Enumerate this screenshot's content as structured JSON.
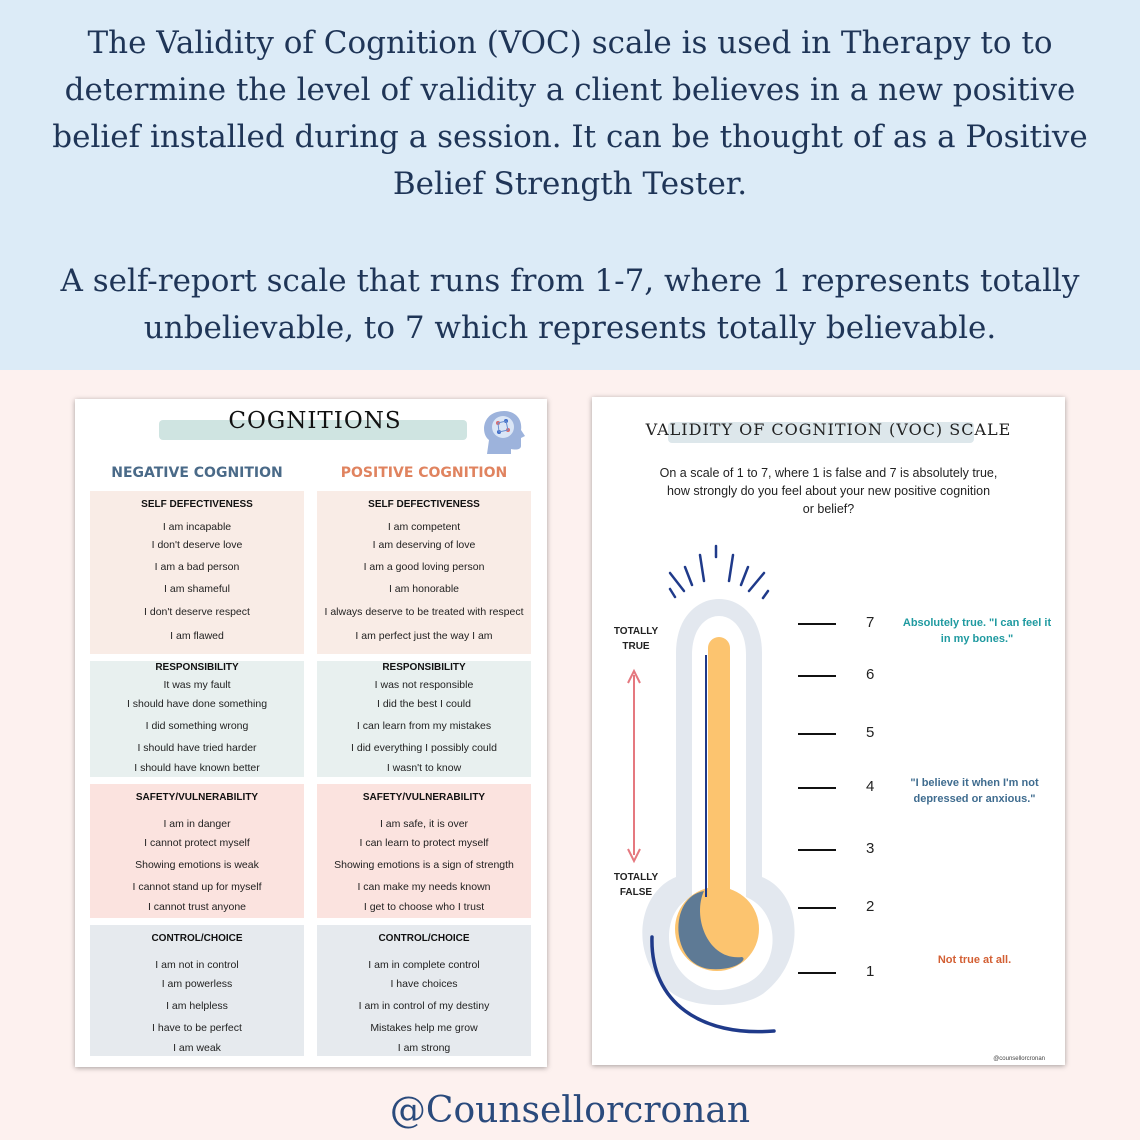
{
  "intro": {
    "paragraph1": "The Validity of Cognition (VOC) scale is used in Therapy to  to determine the level of validity a client believes in a new positive belief installed during a session. It can be thought of as a Positive Belief Strength Tester.",
    "paragraph2": "A self-report scale that runs from 1-7, where 1 represents totally unbelievable, to 7 which represents totally believable."
  },
  "cognitions": {
    "title": "COGNITIONS",
    "negative_heading": "NEGATIVE COGNITION",
    "positive_heading": "POSITIVE COGNITION",
    "sections": [
      {
        "header": "SELF DEFECTIVENESS",
        "negative": [
          "I am incapable",
          "I don't deserve love",
          "I am a bad person",
          "I am shameful",
          "I don't deserve respect",
          "I am flawed"
        ],
        "positive": [
          "I am competent",
          "I am deserving of love",
          "I am a good loving person",
          "I am honorable",
          "I always deserve to be treated with respect",
          "I am perfect just the way I am"
        ]
      },
      {
        "header": "RESPONSIBILITY",
        "negative": [
          "It was my fault",
          "I should have done something",
          "I did something wrong",
          "I should have tried harder",
          "I should have known better"
        ],
        "positive": [
          "I was not responsible",
          "I did the best I could",
          "I can learn from my mistakes",
          "I did everything I  possibly could",
          "I wasn't to know"
        ]
      },
      {
        "header": "SAFETY/VULNERABILITY",
        "negative": [
          "I am in danger",
          "I cannot protect myself",
          "Showing emotions is weak",
          "I cannot stand up for myself",
          "I cannot trust anyone"
        ],
        "positive": [
          "I am safe, it is over",
          "I can learn to protect myself",
          "Showing emotions is a sign of strength",
          "I can make my needs known",
          "I get to choose who I trust"
        ]
      },
      {
        "header": "CONTROL/CHOICE",
        "negative": [
          "I am not in control",
          "I am powerless",
          "I am helpless",
          "I have to be perfect",
          "I am weak"
        ],
        "positive": [
          "I am in complete control",
          "I have choices",
          "I am in control of my destiny",
          "Mistakes help me grow",
          "I am strong"
        ]
      }
    ]
  },
  "voc": {
    "title": "VALIDITY OF COGNITION  (VOC) SCALE",
    "question": [
      "On a scale of 1 to 7, where 1 is false and 7 is absolutely true,",
      "how strongly do you feel about your new positive cognition",
      "or belief?"
    ],
    "totally_true": [
      "TOTALLY",
      "TRUE"
    ],
    "totally_false": [
      "TOTALLY",
      "FALSE"
    ],
    "scale": [
      "7",
      "6",
      "5",
      "4",
      "3",
      "2",
      "1"
    ],
    "anno_7": [
      "Absolutely true. \"I can feel it",
      "in my bones.\""
    ],
    "anno_4": [
      "\"I believe it when I'm not",
      "depressed or anxious.\""
    ],
    "anno_1": "Not true at all.",
    "credit": "@counsellorcronan"
  },
  "footer": "@Counsellorcronan",
  "colors": {
    "navy": "#1f3557",
    "negative": "#4a6a88",
    "positive": "#e0835f",
    "peach": "#f9ece6",
    "mint": "#e8f0ef",
    "pink": "#fbe3df",
    "grey": "#e6eaee",
    "mercury": "#fcc46f",
    "tube": "#e3e8ef",
    "teal": "#1f9aa0",
    "orange": "#d35f33"
  }
}
